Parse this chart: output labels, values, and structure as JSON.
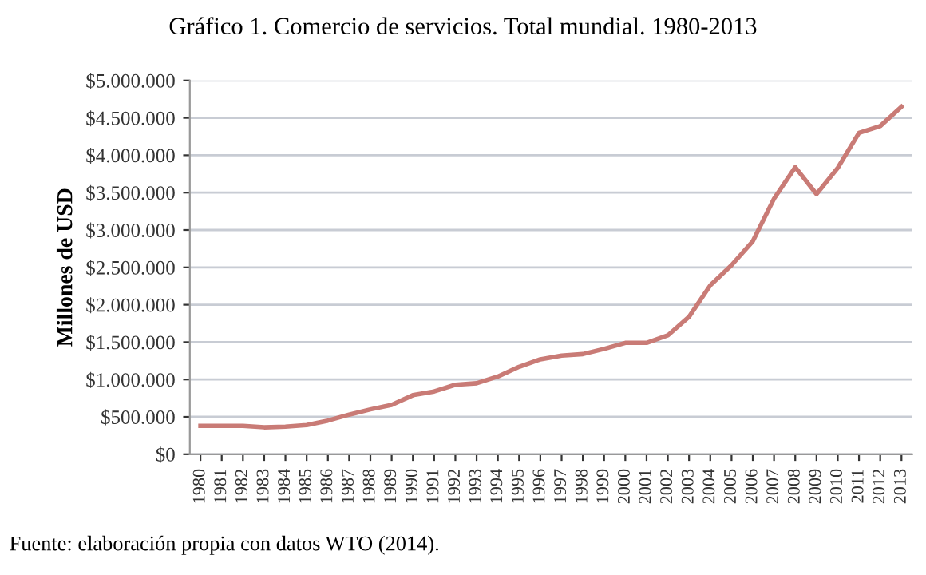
{
  "chart_data": {
    "type": "line",
    "title": "Gráfico 1. Comercio de servicios. Total mundial. 1980-2013",
    "ylabel": "Millones de USD",
    "categories": [
      "1980",
      "1981",
      "1982",
      "1983",
      "1984",
      "1985",
      "1986",
      "1987",
      "1988",
      "1989",
      "1990",
      "1991",
      "1992",
      "1993",
      "1994",
      "1995",
      "1996",
      "1997",
      "1998",
      "1999",
      "2000",
      "2001",
      "2002",
      "2003",
      "2004",
      "2005",
      "2006",
      "2007",
      "2008",
      "2009",
      "2010",
      "2011",
      "2012",
      "2013"
    ],
    "series": [
      {
        "color": "#c97b76",
        "values": [
          380000,
          380000,
          380000,
          360000,
          370000,
          390000,
          450000,
          530000,
          600000,
          660000,
          790000,
          840000,
          930000,
          950000,
          1040000,
          1170000,
          1270000,
          1320000,
          1340000,
          1410000,
          1490000,
          1490000,
          1590000,
          1840000,
          2260000,
          2530000,
          2850000,
          3420000,
          3840000,
          3480000,
          3830000,
          4300000,
          4390000,
          4650000
        ]
      }
    ],
    "ylim": [
      0,
      5000000
    ],
    "yticks": [
      {
        "value": 0,
        "label": "$0"
      },
      {
        "value": 500000,
        "label": "$500.000"
      },
      {
        "value": 1000000,
        "label": "$1.000.000"
      },
      {
        "value": 1500000,
        "label": "$1.500.000"
      },
      {
        "value": 2000000,
        "label": "$2.000.000"
      },
      {
        "value": 2500000,
        "label": "$2.500.000"
      },
      {
        "value": 3000000,
        "label": "$3.000.000"
      },
      {
        "value": 3500000,
        "label": "$3.500.000"
      },
      {
        "value": 4000000,
        "label": "$4.000.000"
      },
      {
        "value": 4500000,
        "label": "$4.500.000"
      },
      {
        "value": 5000000,
        "label": "$5.000.000"
      }
    ],
    "grid": "y",
    "marker": "none",
    "line_style": "solid",
    "annotations": [
      "Fuente: elaboración propia con datos WTO (2014)."
    ]
  }
}
